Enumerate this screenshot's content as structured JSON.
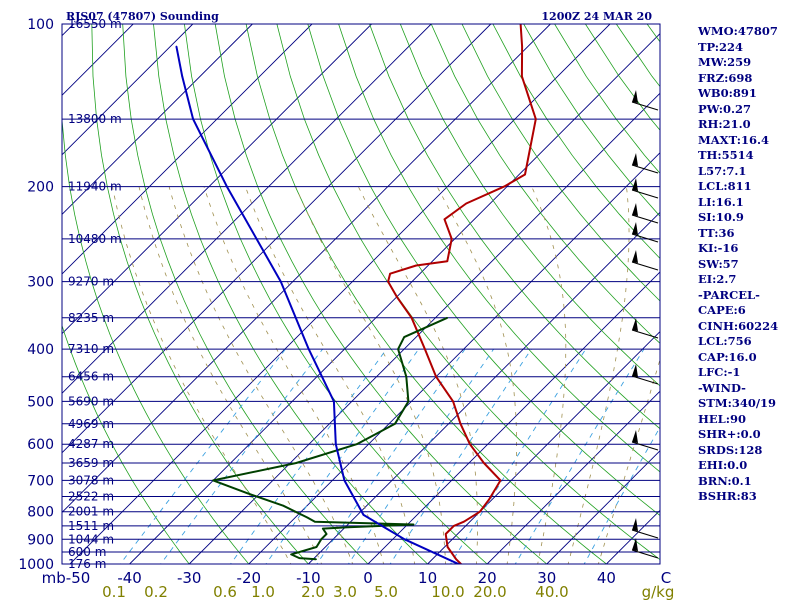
{
  "title_left": "RJS07 (47807) Sounding",
  "title_right": "1200Z 24 MAR 20",
  "indices": [
    "WMO:47807",
    "TP:224",
    "MW:259",
    "FRZ:698",
    "WB0:891",
    "PW:0.27",
    "RH:21.0",
    "MAXT:16.4",
    "TH:5514",
    "L57:7.1",
    "LCL:811",
    "LI:16.1",
    "SI:10.9",
    "TT:36",
    "KI:-16",
    "SW:57",
    "EI:2.7",
    "-PARCEL-",
    "CAPE:6",
    "CINH:60224",
    "LCL:756",
    "CAP:16.0",
    "LFC:-1",
    "-WIND-",
    "STM:340/19",
    "HEL:90",
    "SHR+:0.0",
    "SRDS:128",
    "EHI:0.0",
    "BRN:0.1",
    "BSHR:83"
  ],
  "chart_data": {
    "type": "line",
    "plot_type": "skew-T log-p",
    "y_axis": {
      "scale": "log",
      "range": [
        1000,
        100
      ],
      "unit_label": "mb",
      "ticks": [
        100,
        200,
        300,
        400,
        500,
        600,
        700,
        800,
        900,
        1000
      ]
    },
    "x_axis": {
      "range": [
        -50,
        50
      ],
      "ticks": [
        -50,
        -40,
        -30,
        -20,
        -10,
        0,
        10,
        20,
        30,
        40,
        50
      ],
      "tick_labels": [
        "mb-50",
        "-40",
        "-30",
        "-20",
        "-10",
        "0",
        "10",
        "20",
        "30",
        "40",
        "C"
      ]
    },
    "mixing_ratio_labels": [
      "0.1",
      "0.2",
      "0.6",
      "1.0",
      "2.0",
      "3.0",
      "5.0",
      "10.0",
      "20.0",
      "40.0",
      "g/kg"
    ],
    "height_labels": [
      {
        "p": 100,
        "label": "16550 m"
      },
      {
        "p": 150,
        "label": "13800 m"
      },
      {
        "p": 200,
        "label": "11940 m"
      },
      {
        "p": 250,
        "label": "10480 m"
      },
      {
        "p": 300,
        "label": "9270 m"
      },
      {
        "p": 350,
        "label": "8235 m"
      },
      {
        "p": 400,
        "label": "7310 m"
      },
      {
        "p": 450,
        "label": "6456 m"
      },
      {
        "p": 500,
        "label": "5690 m"
      },
      {
        "p": 550,
        "label": "4969 m"
      },
      {
        "p": 600,
        "label": "4287 m"
      },
      {
        "p": 650,
        "label": "3659 m"
      },
      {
        "p": 700,
        "label": "3078 m"
      },
      {
        "p": 750,
        "label": "2522 m"
      },
      {
        "p": 800,
        "label": "2001 m"
      },
      {
        "p": 850,
        "label": "1511 m"
      },
      {
        "p": 900,
        "label": "1044 m"
      },
      {
        "p": 950,
        "label": "600 m"
      },
      {
        "p": 1000,
        "label": "176 m"
      }
    ],
    "series": [
      {
        "key": "temperature",
        "color": "#b00000",
        "points": [
          {
            "p": 1010,
            "t": 16.4
          },
          {
            "p": 980,
            "t": 14.0
          },
          {
            "p": 930,
            "t": 10.5
          },
          {
            "p": 880,
            "t": 8.0
          },
          {
            "p": 850,
            "t": 8.0
          },
          {
            "p": 835,
            "t": 9.0
          },
          {
            "p": 800,
            "t": 10.0
          },
          {
            "p": 760,
            "t": 9.5
          },
          {
            "p": 700,
            "t": 8.2
          },
          {
            "p": 650,
            "t": 2.5
          },
          {
            "p": 600,
            "t": -3.0
          },
          {
            "p": 550,
            "t": -8.0
          },
          {
            "p": 500,
            "t": -13.0
          },
          {
            "p": 450,
            "t": -20.0
          },
          {
            "p": 400,
            "t": -26.5
          },
          {
            "p": 350,
            "t": -34.0
          },
          {
            "p": 320,
            "t": -40.0
          },
          {
            "p": 300,
            "t": -44.0
          },
          {
            "p": 290,
            "t": -45.0
          },
          {
            "p": 280,
            "t": -42.0
          },
          {
            "p": 275,
            "t": -37.5
          },
          {
            "p": 250,
            "t": -40.5
          },
          {
            "p": 230,
            "t": -45.0
          },
          {
            "p": 215,
            "t": -44.0
          },
          {
            "p": 200,
            "t": -40.5
          },
          {
            "p": 190,
            "t": -39.0
          },
          {
            "p": 150,
            "t": -46.5
          },
          {
            "p": 125,
            "t": -56.0
          },
          {
            "p": 110,
            "t": -61.0
          },
          {
            "p": 100,
            "t": -65.0
          }
        ]
      },
      {
        "key": "dewpoint",
        "color": "#004000",
        "points": [
          {
            "p": 980,
            "t": -9.5
          },
          {
            "p": 975,
            "t": -12.5
          },
          {
            "p": 960,
            "t": -14.5
          },
          {
            "p": 930,
            "t": -11.5
          },
          {
            "p": 900,
            "t": -12.0
          },
          {
            "p": 880,
            "t": -12.0
          },
          {
            "p": 860,
            "t": -13.5
          },
          {
            "p": 855,
            "t": -9.5
          },
          {
            "p": 845,
            "t": 1.0
          },
          {
            "p": 835,
            "t": -16.0
          },
          {
            "p": 820,
            "t": -18.0
          },
          {
            "p": 780,
            "t": -24.0
          },
          {
            "p": 740,
            "t": -32.0
          },
          {
            "p": 700,
            "t": -40.0
          },
          {
            "p": 650,
            "t": -29.0
          },
          {
            "p": 600,
            "t": -22.0
          },
          {
            "p": 550,
            "t": -19.0
          },
          {
            "p": 500,
            "t": -20.5
          },
          {
            "p": 450,
            "t": -25.0
          },
          {
            "p": 400,
            "t": -31.0
          },
          {
            "p": 380,
            "t": -32.0
          },
          {
            "p": 350,
            "t": -28.0
          }
        ]
      },
      {
        "key": "parcel",
        "color": "#0000c0",
        "points": [
          {
            "p": 1010,
            "t": 16.4
          },
          {
            "p": 900,
            "t": 2.0
          },
          {
            "p": 811,
            "t": -9.0
          },
          {
            "p": 700,
            "t": -18.0
          },
          {
            "p": 600,
            "t": -25.5
          },
          {
            "p": 500,
            "t": -33.0
          },
          {
            "p": 400,
            "t": -46.0
          },
          {
            "p": 300,
            "t": -62.0
          },
          {
            "p": 200,
            "t": -87.0
          },
          {
            "p": 150,
            "t": -104.0
          },
          {
            "p": 125,
            "t": -113.0
          },
          {
            "p": 110,
            "t": -119.0
          }
        ]
      }
    ]
  }
}
